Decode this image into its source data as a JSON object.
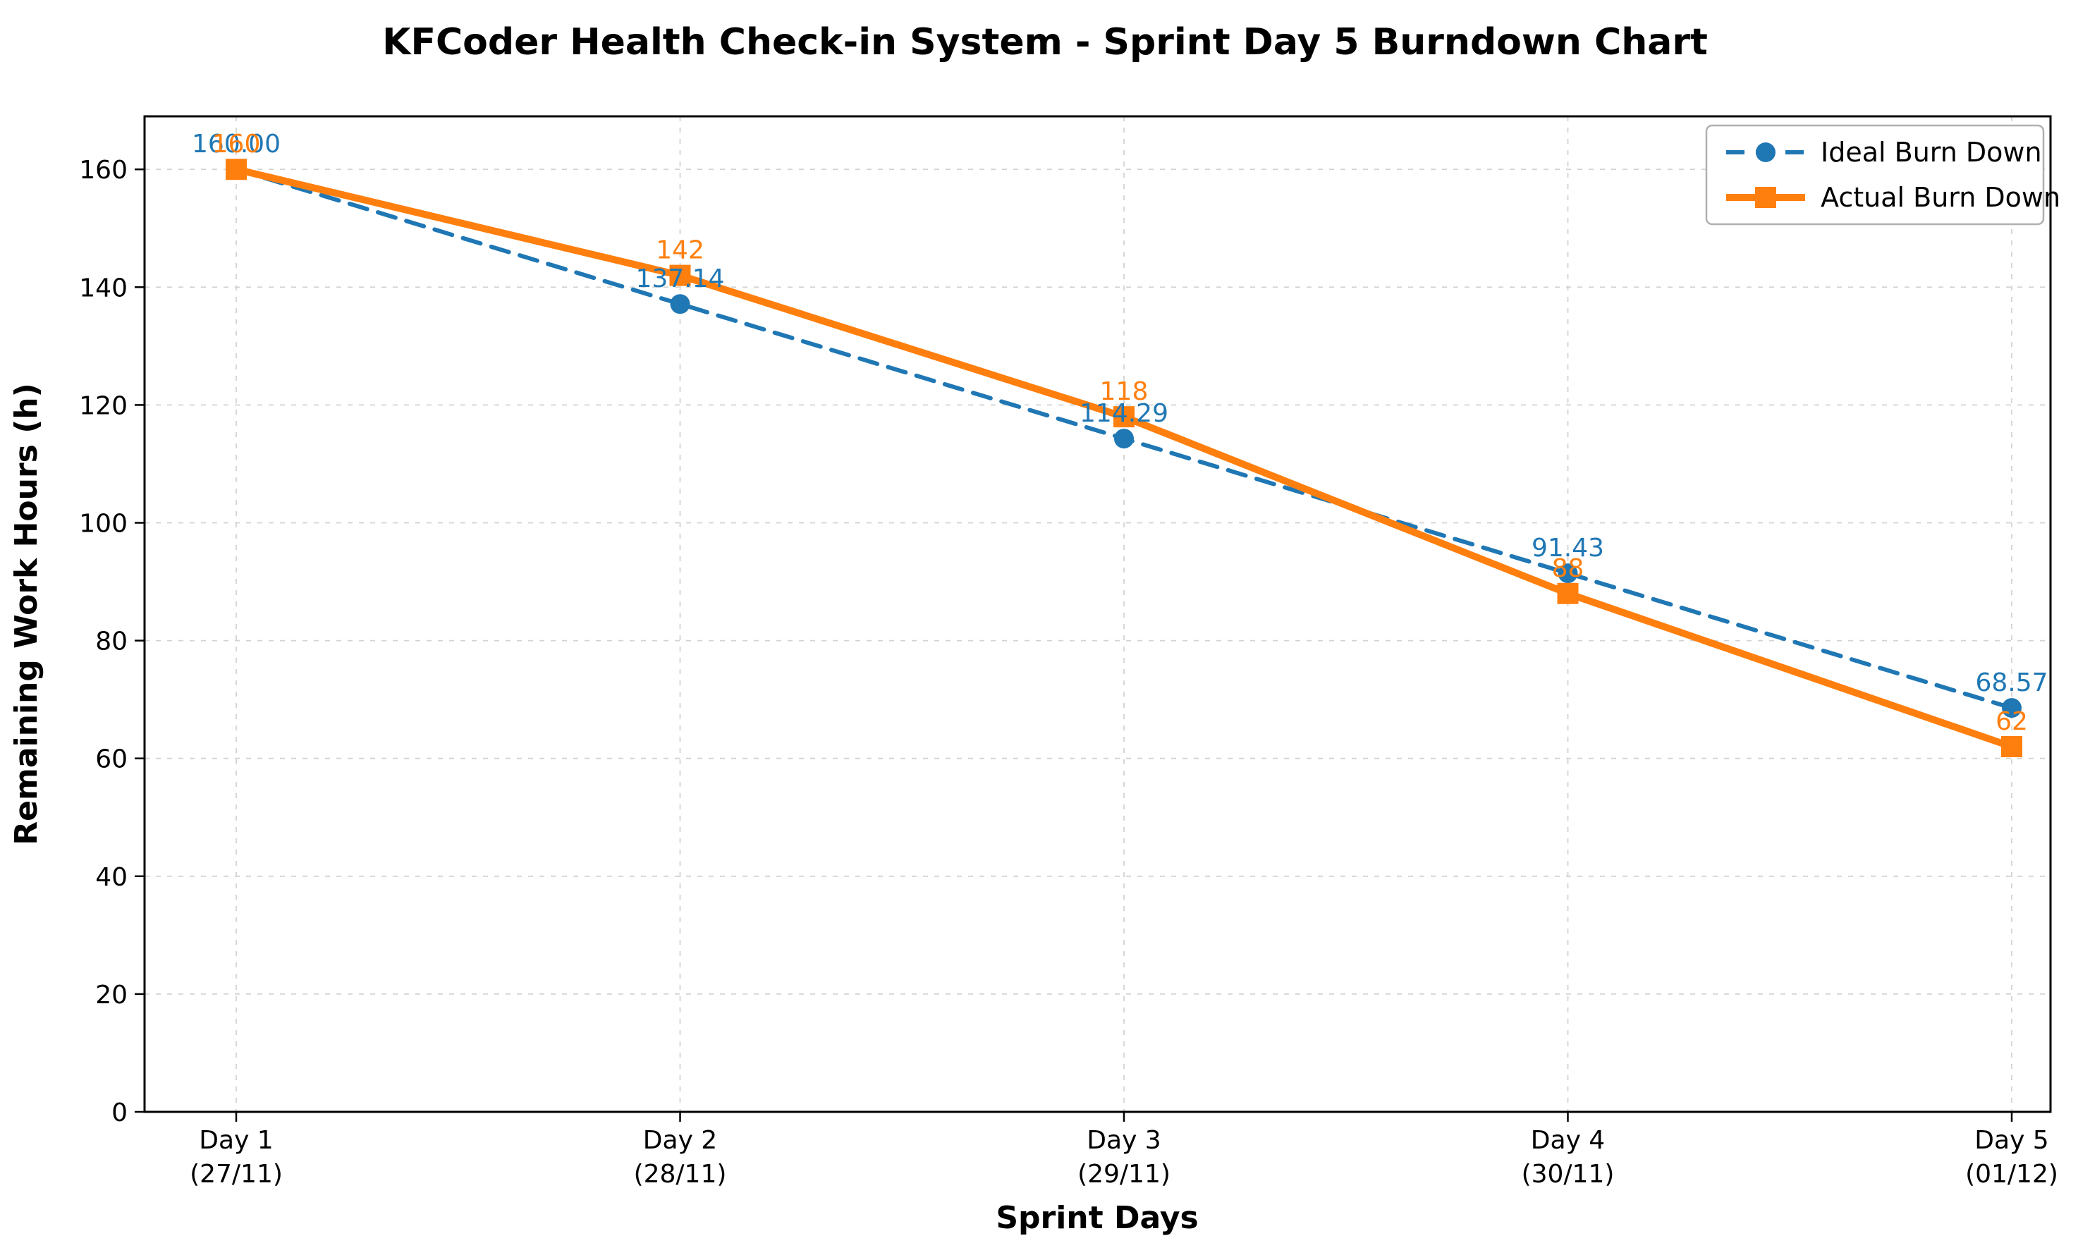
{
  "chart_data": {
    "type": "line",
    "title": "KFCoder Health Check-in System - Sprint Day 5 Burndown Chart",
    "xlabel": "Sprint Days",
    "ylabel": "Remaining Work Hours (h)",
    "categories": [
      "Day 1",
      "Day 2",
      "Day 3",
      "Day 4",
      "Day 5"
    ],
    "category_dates": [
      "(27/11)",
      "(28/11)",
      "(29/11)",
      "(30/11)",
      "(01/12)"
    ],
    "y_ticks": [
      0,
      20,
      40,
      60,
      80,
      100,
      120,
      140,
      160
    ],
    "ylim": [
      0,
      169
    ],
    "grid": true,
    "grid_style": "dashed",
    "legend_position": "top-right",
    "series": [
      {
        "name": "Ideal Burn Down",
        "values": [
          160.0,
          137.14,
          114.29,
          91.43,
          68.57
        ],
        "point_labels": [
          "160.00",
          "137.14",
          "114.29",
          "91.43",
          "68.57"
        ],
        "color": "#1f77b4",
        "line_style": "dashed",
        "marker": "circle"
      },
      {
        "name": "Actual Burn Down",
        "values": [
          160,
          142,
          118,
          88,
          62
        ],
        "point_labels": [
          "160",
          "142",
          "118",
          "88",
          "62"
        ],
        "color": "#ff7f0e",
        "line_style": "solid",
        "marker": "square"
      }
    ]
  }
}
